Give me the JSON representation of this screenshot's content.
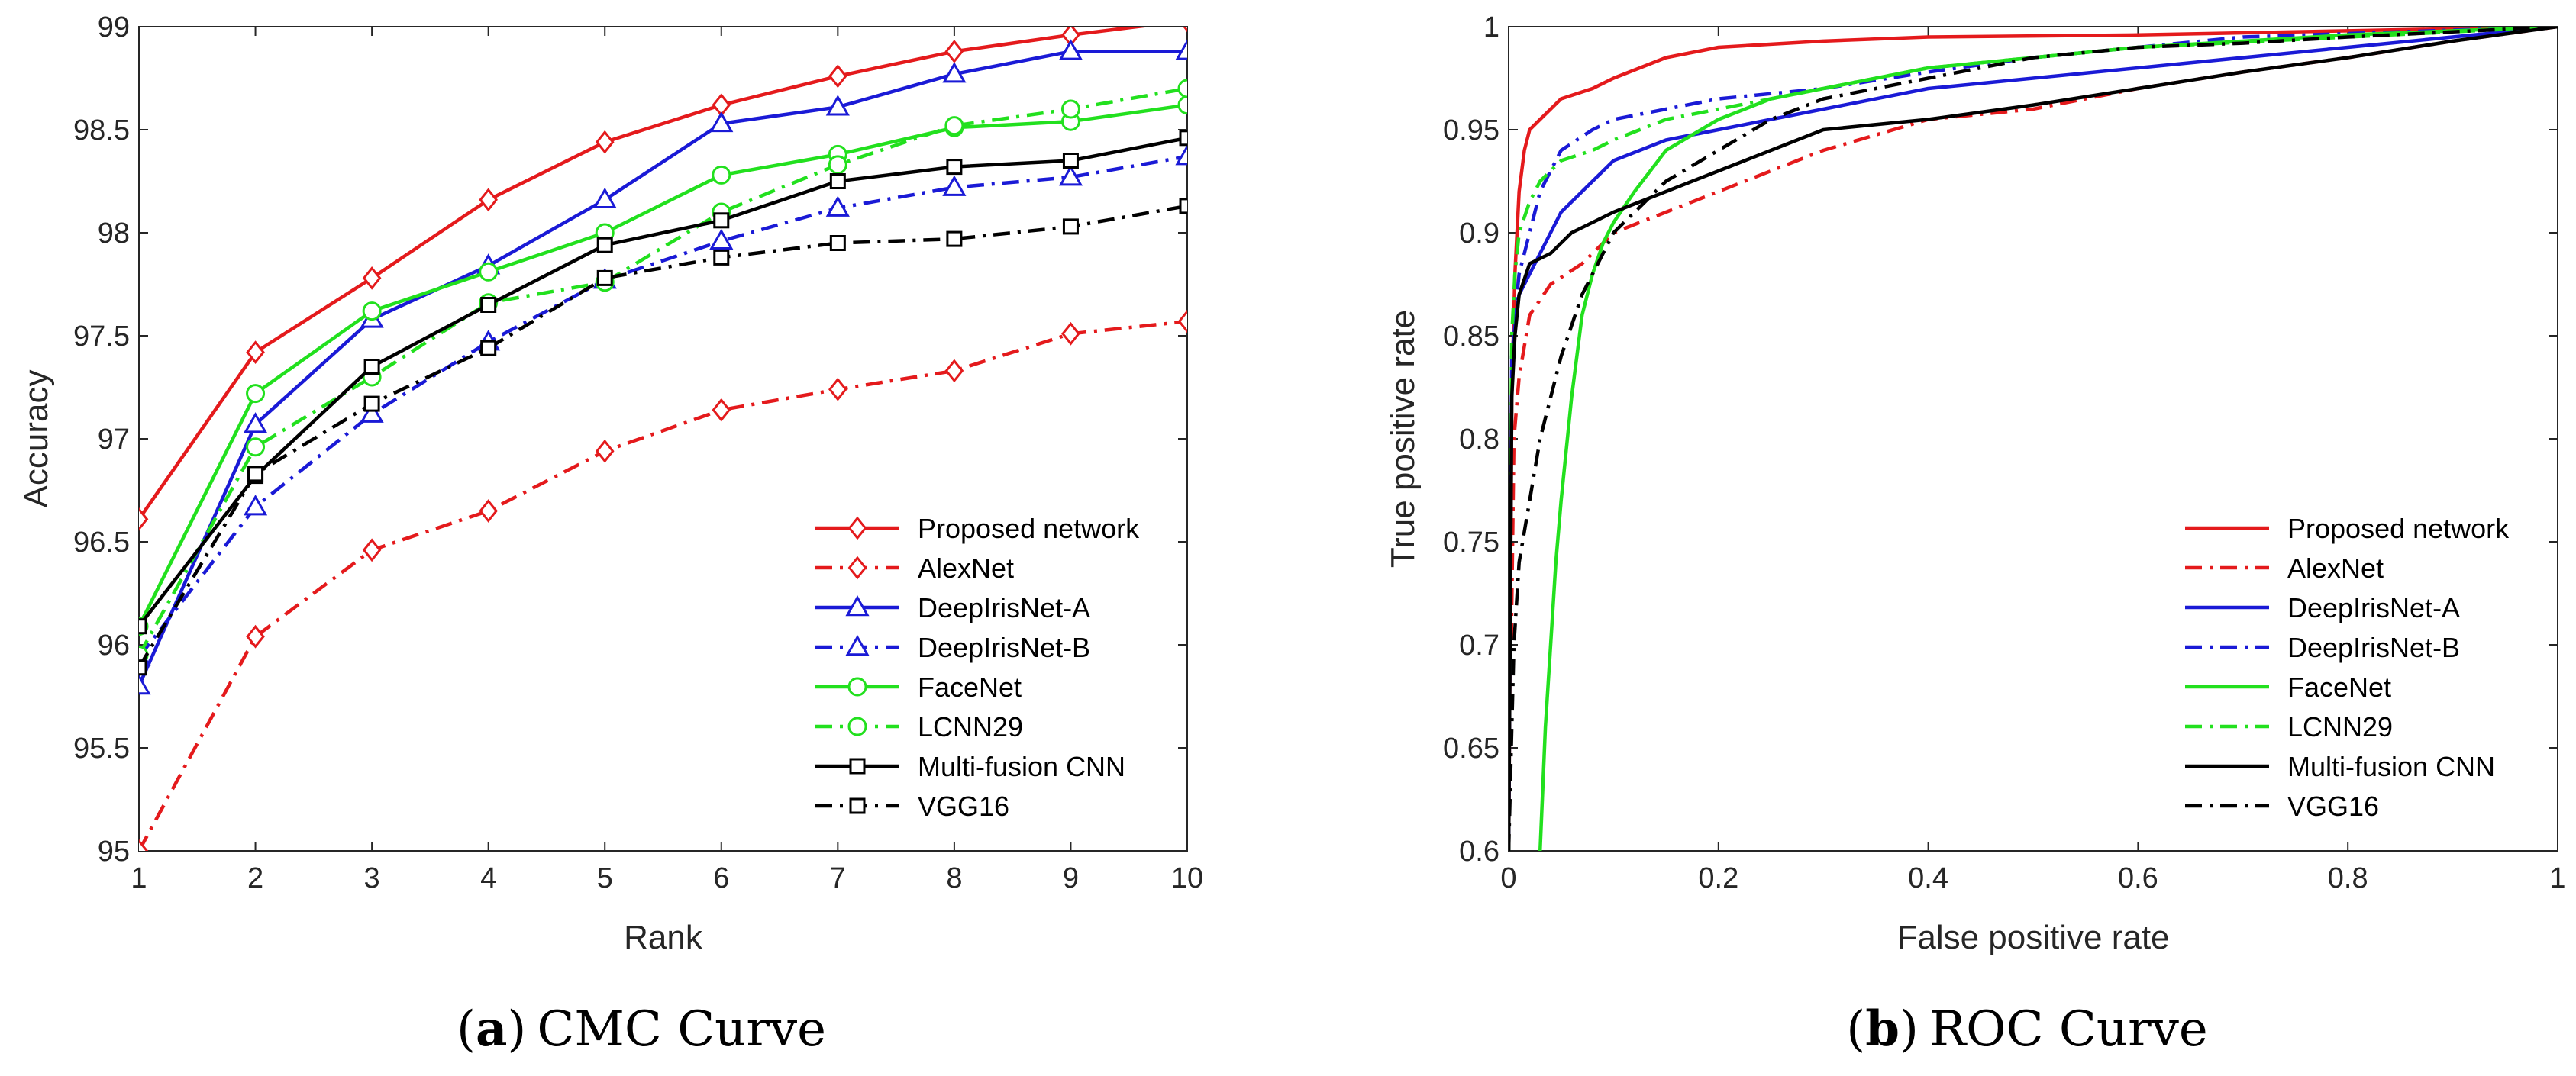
{
  "chart_data": [
    {
      "type": "line",
      "xlabel": "Rank",
      "ylabel": "Accuracy",
      "xlim": [
        1,
        10
      ],
      "ylim": [
        95,
        99
      ],
      "xticks": [
        "1",
        "2",
        "3",
        "4",
        "5",
        "6",
        "7",
        "8",
        "9",
        "10"
      ],
      "yticks": [
        "95",
        "95.5",
        "96",
        "96.5",
        "97",
        "97.5",
        "98",
        "98.5",
        "99"
      ],
      "caption": {
        "letter": "a",
        "text": "CMC Curve"
      },
      "legend_position": "bottom-right",
      "x": [
        1,
        2,
        3,
        4,
        5,
        6,
        7,
        8,
        9,
        10
      ],
      "series": [
        {
          "name": "Proposed network",
          "color": "#e41a1c",
          "dash": "solid",
          "marker": "diamond",
          "values": [
            96.61,
            97.42,
            97.78,
            98.16,
            98.44,
            98.62,
            98.76,
            98.88,
            98.96,
            99.03
          ]
        },
        {
          "name": "AlexNet",
          "color": "#e41a1c",
          "dash": "dashdot",
          "marker": "diamond",
          "values": [
            95.0,
            96.04,
            96.46,
            96.65,
            96.94,
            97.14,
            97.24,
            97.33,
            97.51,
            97.57
          ]
        },
        {
          "name": "DeepIrisNet-A",
          "color": "#1a1ad6",
          "dash": "solid",
          "marker": "triangle",
          "values": [
            95.8,
            97.07,
            97.58,
            97.84,
            98.16,
            98.53,
            98.61,
            98.77,
            98.88,
            98.88
          ]
        },
        {
          "name": "DeepIrisNet-B",
          "color": "#1a1ad6",
          "dash": "dashdot",
          "marker": "triangle",
          "values": [
            95.94,
            96.67,
            97.12,
            97.47,
            97.77,
            97.96,
            98.12,
            98.22,
            98.27,
            98.37
          ]
        },
        {
          "name": "FaceNet",
          "color": "#22e01e",
          "dash": "solid",
          "marker": "circle",
          "values": [
            96.09,
            97.22,
            97.62,
            97.81,
            98.0,
            98.28,
            98.38,
            98.51,
            98.54,
            98.62
          ]
        },
        {
          "name": "LCNN29",
          "color": "#22e01e",
          "dash": "dashdot",
          "marker": "circle",
          "values": [
            95.95,
            96.96,
            97.3,
            97.66,
            97.76,
            98.1,
            98.33,
            98.52,
            98.6,
            98.7
          ]
        },
        {
          "name": "Multi-fusion CNN",
          "color": "#000000",
          "dash": "solid",
          "marker": "square",
          "values": [
            96.09,
            96.82,
            97.35,
            97.65,
            97.94,
            98.06,
            98.25,
            98.32,
            98.35,
            98.46
          ]
        },
        {
          "name": "VGG16",
          "color": "#000000",
          "dash": "dashdot",
          "marker": "square",
          "values": [
            95.89,
            96.83,
            97.17,
            97.44,
            97.78,
            97.88,
            97.95,
            97.97,
            98.03,
            98.13
          ]
        }
      ]
    },
    {
      "type": "line",
      "xlabel": "False positive rate",
      "ylabel": "True positive rate",
      "xlim": [
        0,
        1
      ],
      "ylim": [
        0.6,
        1
      ],
      "xticks": [
        "0",
        "0.2",
        "0.4",
        "0.6",
        "0.8",
        "1"
      ],
      "yticks": [
        "0.6",
        "0.65",
        "0.7",
        "0.75",
        "0.8",
        "0.85",
        "0.9",
        "0.95",
        "1"
      ],
      "caption": {
        "letter": "b",
        "text": "ROC Curve"
      },
      "legend_position": "bottom-right",
      "series": [
        {
          "name": "Proposed network",
          "color": "#e41a1c",
          "dash": "solid",
          "x": [
            0,
            0.003,
            0.006,
            0.01,
            0.015,
            0.02,
            0.03,
            0.05,
            0.08,
            0.1,
            0.15,
            0.2,
            0.3,
            0.4,
            0.6,
            0.8,
            1
          ],
          "y": [
            0.6,
            0.82,
            0.88,
            0.92,
            0.94,
            0.95,
            0.955,
            0.965,
            0.97,
            0.975,
            0.985,
            0.99,
            0.993,
            0.995,
            0.996,
            0.998,
            1.0
          ]
        },
        {
          "name": "AlexNet",
          "color": "#e41a1c",
          "dash": "dashdot",
          "x": [
            0,
            0.005,
            0.01,
            0.02,
            0.04,
            0.07,
            0.1,
            0.15,
            0.2,
            0.25,
            0.3,
            0.4,
            0.5,
            0.6,
            0.7,
            0.8,
            0.9,
            1
          ],
          "y": [
            0.6,
            0.8,
            0.83,
            0.86,
            0.875,
            0.885,
            0.9,
            0.91,
            0.92,
            0.93,
            0.94,
            0.955,
            0.96,
            0.97,
            0.978,
            0.985,
            0.993,
            1.0
          ]
        },
        {
          "name": "DeepIrisNet-A",
          "color": "#1a1ad6",
          "dash": "solid",
          "x": [
            0,
            0.003,
            0.007,
            0.01,
            0.02,
            0.03,
            0.05,
            0.08,
            0.1,
            0.15,
            0.2,
            0.3,
            0.4,
            0.5,
            0.6,
            0.7,
            0.8,
            1
          ],
          "y": [
            0.6,
            0.84,
            0.86,
            0.87,
            0.88,
            0.89,
            0.91,
            0.925,
            0.935,
            0.945,
            0.95,
            0.96,
            0.97,
            0.975,
            0.98,
            0.985,
            0.99,
            1.0
          ]
        },
        {
          "name": "DeepIrisNet-B",
          "color": "#1a1ad6",
          "dash": "dashdot",
          "x": [
            0,
            0.003,
            0.006,
            0.01,
            0.02,
            0.03,
            0.05,
            0.08,
            0.1,
            0.15,
            0.2,
            0.3,
            0.4,
            0.5,
            0.6,
            0.7,
            1
          ],
          "y": [
            0.6,
            0.84,
            0.86,
            0.88,
            0.9,
            0.92,
            0.94,
            0.95,
            0.955,
            0.96,
            0.965,
            0.97,
            0.978,
            0.985,
            0.99,
            0.995,
            1.0
          ]
        },
        {
          "name": "FaceNet",
          "color": "#22e01e",
          "dash": "solid",
          "x": [
            0.03,
            0.035,
            0.04,
            0.045,
            0.05,
            0.06,
            0.07,
            0.08,
            0.09,
            0.1,
            0.12,
            0.15,
            0.2,
            0.25,
            0.3,
            0.4,
            0.5,
            0.6,
            0.8,
            1
          ],
          "y": [
            0.6,
            0.66,
            0.7,
            0.74,
            0.77,
            0.82,
            0.86,
            0.88,
            0.895,
            0.905,
            0.92,
            0.94,
            0.955,
            0.965,
            0.97,
            0.98,
            0.985,
            0.99,
            0.996,
            1.0
          ]
        },
        {
          "name": "LCNN29",
          "color": "#22e01e",
          "dash": "dashdot",
          "x": [
            0,
            0.003,
            0.006,
            0.01,
            0.02,
            0.03,
            0.05,
            0.08,
            0.1,
            0.15,
            0.2,
            0.3,
            0.4,
            0.5,
            0.6,
            0.8,
            1
          ],
          "y": [
            0.6,
            0.85,
            0.88,
            0.9,
            0.915,
            0.925,
            0.935,
            0.94,
            0.945,
            0.955,
            0.96,
            0.97,
            0.98,
            0.985,
            0.99,
            0.995,
            1.0
          ]
        },
        {
          "name": "Multi-fusion CNN",
          "color": "#000000",
          "dash": "solid",
          "x": [
            0,
            0.003,
            0.006,
            0.01,
            0.02,
            0.04,
            0.06,
            0.1,
            0.15,
            0.2,
            0.25,
            0.3,
            0.4,
            0.5,
            0.6,
            0.7,
            0.8,
            0.9,
            1
          ],
          "y": [
            0.6,
            0.82,
            0.85,
            0.87,
            0.885,
            0.89,
            0.9,
            0.91,
            0.92,
            0.93,
            0.94,
            0.95,
            0.955,
            0.962,
            0.97,
            0.978,
            0.985,
            0.993,
            1.0
          ]
        },
        {
          "name": "VGG16",
          "color": "#000000",
          "dash": "dashdot",
          "x": [
            0,
            0.005,
            0.01,
            0.02,
            0.03,
            0.05,
            0.07,
            0.1,
            0.15,
            0.2,
            0.25,
            0.3,
            0.4,
            0.5,
            0.6,
            0.7,
            0.8,
            1
          ],
          "y": [
            0.6,
            0.7,
            0.74,
            0.77,
            0.8,
            0.84,
            0.87,
            0.9,
            0.925,
            0.94,
            0.955,
            0.965,
            0.975,
            0.985,
            0.99,
            0.992,
            0.995,
            1.0
          ]
        }
      ]
    }
  ]
}
